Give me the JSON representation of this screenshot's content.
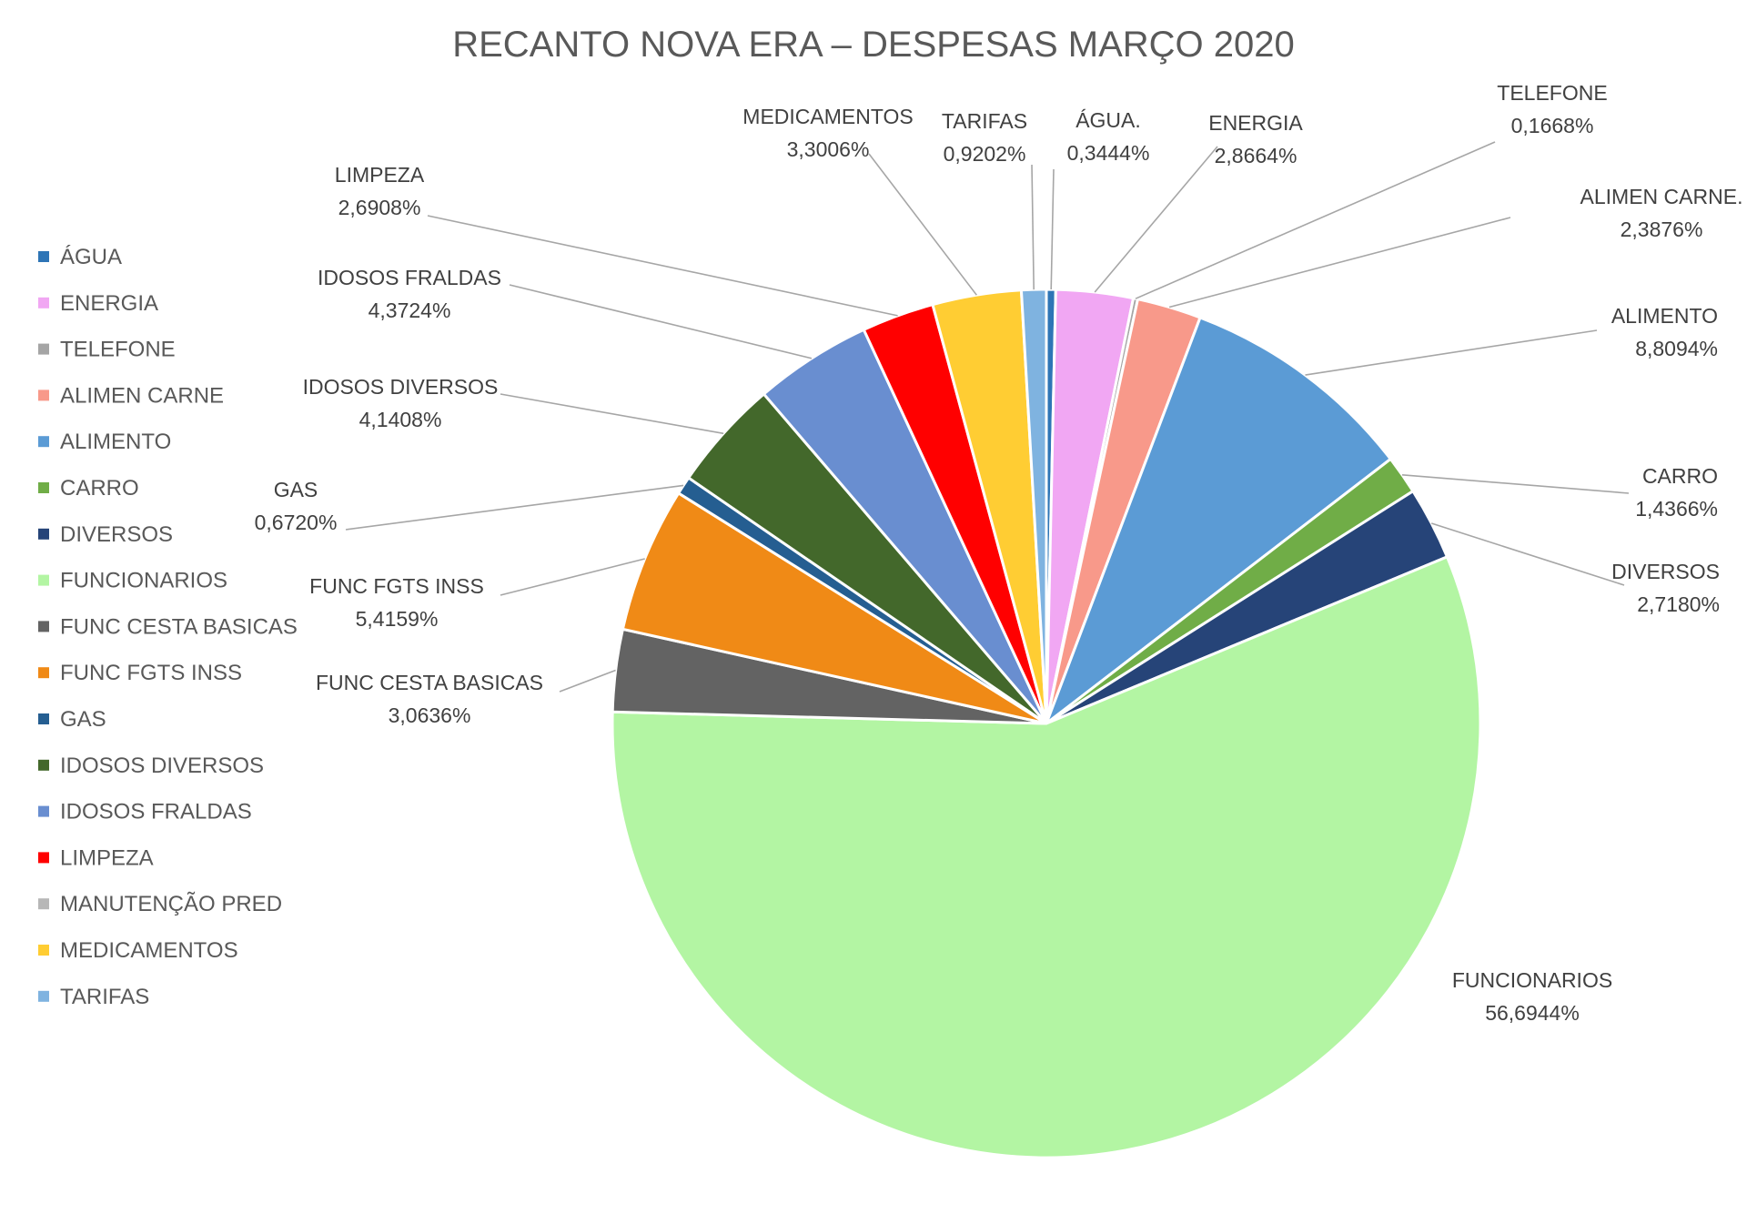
{
  "chart_data": {
    "type": "pie",
    "title": "RECANTO NOVA ERA – DESPESAS MARÇO 2020",
    "legend": {
      "placement": "left",
      "entries": [
        {
          "label": "ÁGUA",
          "color": "#2E75B6"
        },
        {
          "label": "ENERGIA",
          "color": "#F1A7F3"
        },
        {
          "label": "TELEFONE",
          "color": "#A5A5A5"
        },
        {
          "label": "ALIMEN CARNE",
          "color": "#F8998A"
        },
        {
          "label": "ALIMENTO",
          "color": "#5B9BD5"
        },
        {
          "label": "CARRO",
          "color": "#70AD47"
        },
        {
          "label": "DIVERSOS",
          "color": "#264478"
        },
        {
          "label": "FUNCIONARIOS",
          "color": "#B3F5A3"
        },
        {
          "label": "FUNC CESTA BASICAS",
          "color": "#636363"
        },
        {
          "label": "FUNC FGTS INSS",
          "color": "#F08A16"
        },
        {
          "label": "GAS",
          "color": "#255E91"
        },
        {
          "label": "IDOSOS DIVERSOS",
          "color": "#43682B"
        },
        {
          "label": "IDOSOS FRALDAS",
          "color": "#698ED0"
        },
        {
          "label": "LIMPEZA",
          "color": "#FF0000"
        },
        {
          "label": "MANUTENÇÃO PRED",
          "color": "#B7B7B7"
        },
        {
          "label": "MEDICAMENTOS",
          "color": "#FFCD33"
        },
        {
          "label": "TARIFAS",
          "color": "#7FB3E0"
        }
      ]
    },
    "slices": [
      {
        "label": "ÁGUA.",
        "value": 0.3444,
        "value_label": "0,3444%",
        "color": "#2E75B6"
      },
      {
        "label": "ENERGIA",
        "value": 2.8664,
        "value_label": "2,8664%",
        "color": "#F1A7F3"
      },
      {
        "label": "TELEFONE",
        "value": 0.1668,
        "value_label": "0,1668%",
        "color": "#A5A5A5"
      },
      {
        "label": "ALIMEN CARNE.",
        "value": 2.3876,
        "value_label": "2,3876%",
        "color": "#F8998A"
      },
      {
        "label": "ALIMENTO",
        "value": 8.8094,
        "value_label": "8,8094%",
        "color": "#5B9BD5"
      },
      {
        "label": "CARRO",
        "value": 1.4366,
        "value_label": "1,4366%",
        "color": "#70AD47"
      },
      {
        "label": "DIVERSOS",
        "value": 2.718,
        "value_label": "2,7180%",
        "color": "#264478"
      },
      {
        "label": "FUNCIONARIOS",
        "value": 56.6944,
        "value_label": "56,6944%",
        "color": "#B3F5A3"
      },
      {
        "label": "FUNC CESTA BASICAS",
        "value": 3.0636,
        "value_label": "3,0636%",
        "color": "#636363"
      },
      {
        "label": "FUNC FGTS INSS",
        "value": 5.4159,
        "value_label": "5,4159%",
        "color": "#F08A16"
      },
      {
        "label": "GAS",
        "value": 0.672,
        "value_label": "0,6720%",
        "color": "#255E91"
      },
      {
        "label": "IDOSOS DIVERSOS",
        "value": 4.1408,
        "value_label": "4,1408%",
        "color": "#43682B"
      },
      {
        "label": "IDOSOS FRALDAS",
        "value": 4.3724,
        "value_label": "4,3724%",
        "color": "#698ED0"
      },
      {
        "label": "LIMPEZA",
        "value": 2.6908,
        "value_label": "2,6908%",
        "color": "#FF0000"
      },
      {
        "label": "MEDICAMENTOS",
        "value": 3.3006,
        "value_label": "3,3006%",
        "color": "#FFCD33"
      },
      {
        "label": "TARIFAS",
        "value": 0.9202,
        "value_label": "0,9202%",
        "color": "#7FB3E0"
      }
    ]
  }
}
